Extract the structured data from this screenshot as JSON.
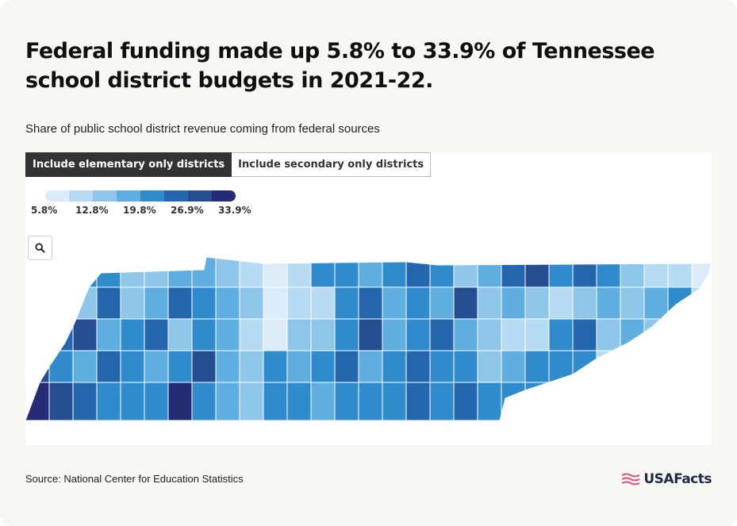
{
  "title": "Federal funding made up 5.8% to 33.9% of Tennessee school district budgets in 2021-22.",
  "subtitle": "Share of public school district revenue coming from federal sources",
  "toggle": {
    "elementary_label": "Include elementary only districts",
    "secondary_label": "Include secondary only districts",
    "active": "elementary"
  },
  "legend": {
    "colors": [
      "#dcebfa",
      "#b8dbf4",
      "#8ec6ea",
      "#5eaee0",
      "#2f8bcc",
      "#2467ad",
      "#254d92",
      "#242d74"
    ],
    "ticks": [
      "5.8%",
      "12.8%",
      "19.8%",
      "26.9%",
      "33.9%"
    ]
  },
  "icons": {
    "zoom": "search-icon",
    "brand": "usafacts-flag-icon"
  },
  "source": "Source: National Center for Education Statistics",
  "brand": "USAFacts",
  "brand_color": "#e0507a"
}
